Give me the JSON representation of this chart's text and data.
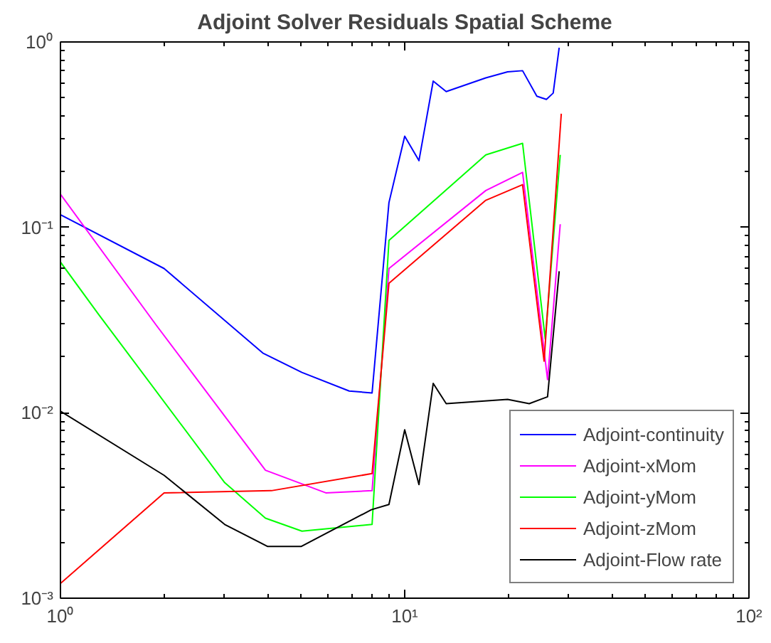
{
  "chart_data": {
    "type": "line",
    "title": "Adjoint Solver Residuals Spatial Scheme",
    "log": "xy",
    "grid": false,
    "legend": "bottom right",
    "marker": "none",
    "line_style": "solid",
    "xlim": [
      1,
      100
    ],
    "ylim": [
      0.001,
      1
    ],
    "xticks": [
      {
        "value": 1,
        "label": "10⁰"
      },
      {
        "value": 10,
        "label": "10¹"
      },
      {
        "value": 100,
        "label": "10²"
      }
    ],
    "yticks": [
      {
        "value": 0.001,
        "label": "10⁻³"
      },
      {
        "value": 0.01,
        "label": "10⁻²"
      },
      {
        "value": 0.1,
        "label": "10⁻¹"
      },
      {
        "value": 1,
        "label": "10⁰"
      }
    ],
    "series": [
      {
        "name": "Adjoint-continuity",
        "color": "#0000ff",
        "x": [
          1,
          2.0,
          3.87,
          5.03,
          6.9,
          8.04,
          9.0,
          10.0,
          11.0,
          12.1,
          13.2,
          17.2,
          19.9,
          22.0,
          24.2,
          25.8,
          27.0,
          28.1
        ],
        "values": [
          0.117,
          0.06,
          0.021,
          0.0165,
          0.0131,
          0.0128,
          0.136,
          0.31,
          0.229,
          0.615,
          0.54,
          0.64,
          0.69,
          0.7,
          0.51,
          0.49,
          0.53,
          0.93
        ]
      },
      {
        "name": "Adjoint-xMom",
        "color": "#ff00ff",
        "x": [
          1,
          1.9,
          3.94,
          5.9,
          8.04,
          9.0,
          17.2,
          22.0,
          26.0,
          28.3
        ],
        "values": [
          0.151,
          0.0296,
          0.0049,
          0.0037,
          0.0038,
          0.06,
          0.158,
          0.198,
          0.0151,
          0.104
        ]
      },
      {
        "name": "Adjoint-yMom",
        "color": "#00ff00",
        "x": [
          1,
          1.29,
          3.0,
          3.94,
          5.03,
          8.04,
          9.0,
          17.2,
          22.0,
          25.6,
          28.3
        ],
        "values": [
          0.065,
          0.034,
          0.0042,
          0.0027,
          0.0023,
          0.0025,
          0.085,
          0.246,
          0.284,
          0.025,
          0.246
        ]
      },
      {
        "name": "Adjoint-zMom",
        "color": "#ff0000",
        "x": [
          1,
          2.0,
          4.1,
          8.04,
          9.0,
          17.2,
          22.0,
          25.4,
          28.5
        ],
        "values": [
          0.0012,
          0.0037,
          0.0038,
          0.0047,
          0.05,
          0.14,
          0.17,
          0.019,
          0.41
        ]
      },
      {
        "name": "Adjoint-Flow rate",
        "color": "#000000",
        "x": [
          1,
          2.0,
          3.0,
          4.0,
          5.0,
          8.0,
          9.0,
          10.0,
          11.0,
          12.1,
          13.2,
          19.9,
          23.0,
          26.0,
          28.1
        ],
        "values": [
          0.0102,
          0.0046,
          0.0025,
          0.0019,
          0.0019,
          0.003,
          0.0032,
          0.0081,
          0.0041,
          0.0144,
          0.0112,
          0.0118,
          0.0112,
          0.0122,
          0.058
        ]
      }
    ]
  }
}
